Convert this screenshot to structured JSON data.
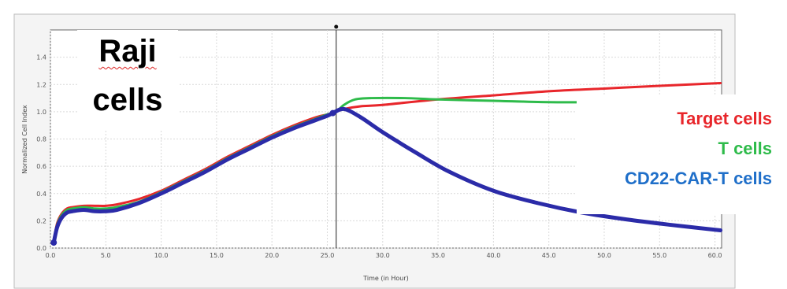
{
  "chart_data": {
    "type": "line",
    "title": "Raji cells",
    "title_lines": [
      "Raji",
      "cells"
    ],
    "xlabel": "Time (in Hour)",
    "ylabel": "Normalized Cell Index",
    "xlim": [
      0,
      60.6
    ],
    "ylim": [
      0,
      1.6
    ],
    "x_ticks": [
      "0.0",
      "5.0",
      "10.0",
      "15.0",
      "20.0",
      "25.0",
      "30.0",
      "35.0",
      "40.0",
      "45.0",
      "50.0",
      "55.0",
      "60.0"
    ],
    "y_ticks": [
      "0.0",
      "0.2",
      "0.4",
      "0.6",
      "0.8",
      "1.0",
      "1.2",
      "1.4"
    ],
    "grid": true,
    "legend_position": "right",
    "vline_x": 25.8,
    "series": [
      {
        "name": "Target cells",
        "color": "#e8262b",
        "x": [
          0.3,
          0.6,
          1,
          1.5,
          2,
          3,
          4,
          5,
          6,
          8,
          10,
          12,
          14,
          16,
          18,
          20,
          22,
          24,
          25,
          25.8,
          26.5,
          28,
          30,
          35,
          40,
          45,
          50,
          55,
          60.5
        ],
        "values": [
          0.05,
          0.18,
          0.25,
          0.29,
          0.3,
          0.31,
          0.31,
          0.31,
          0.32,
          0.36,
          0.42,
          0.5,
          0.58,
          0.67,
          0.75,
          0.83,
          0.9,
          0.96,
          0.98,
          1.0,
          1.02,
          1.04,
          1.05,
          1.09,
          1.12,
          1.15,
          1.17,
          1.19,
          1.21
        ]
      },
      {
        "name": "T cells",
        "color": "#2ebb4a",
        "x": [
          0.3,
          0.6,
          1,
          1.5,
          2,
          3,
          4,
          5,
          6,
          8,
          10,
          12,
          14,
          16,
          18,
          20,
          22,
          24,
          25,
          25.8,
          26.5,
          27.5,
          29,
          32,
          35,
          40,
          45,
          50,
          55,
          60.5
        ],
        "values": [
          0.05,
          0.17,
          0.24,
          0.28,
          0.29,
          0.3,
          0.29,
          0.29,
          0.3,
          0.34,
          0.41,
          0.49,
          0.57,
          0.66,
          0.74,
          0.82,
          0.89,
          0.95,
          0.98,
          1.0,
          1.05,
          1.09,
          1.1,
          1.1,
          1.09,
          1.08,
          1.07,
          1.07,
          1.07,
          1.07
        ]
      },
      {
        "name": "CD22-CAR-T cells",
        "color": "#1f6fc9",
        "x": [
          0.3,
          0.6,
          1,
          1.5,
          2,
          3,
          4,
          5,
          6,
          8,
          10,
          12,
          14,
          16,
          18,
          20,
          22,
          24,
          25,
          25.5,
          26.5,
          28,
          30,
          33,
          36,
          40,
          44,
          48,
          52,
          56,
          60.5
        ],
        "values": [
          0.04,
          0.15,
          0.22,
          0.26,
          0.27,
          0.28,
          0.27,
          0.27,
          0.28,
          0.33,
          0.4,
          0.48,
          0.56,
          0.65,
          0.73,
          0.81,
          0.88,
          0.94,
          0.97,
          0.99,
          1.02,
          0.96,
          0.85,
          0.7,
          0.56,
          0.42,
          0.33,
          0.26,
          0.21,
          0.17,
          0.13
        ]
      }
    ]
  }
}
